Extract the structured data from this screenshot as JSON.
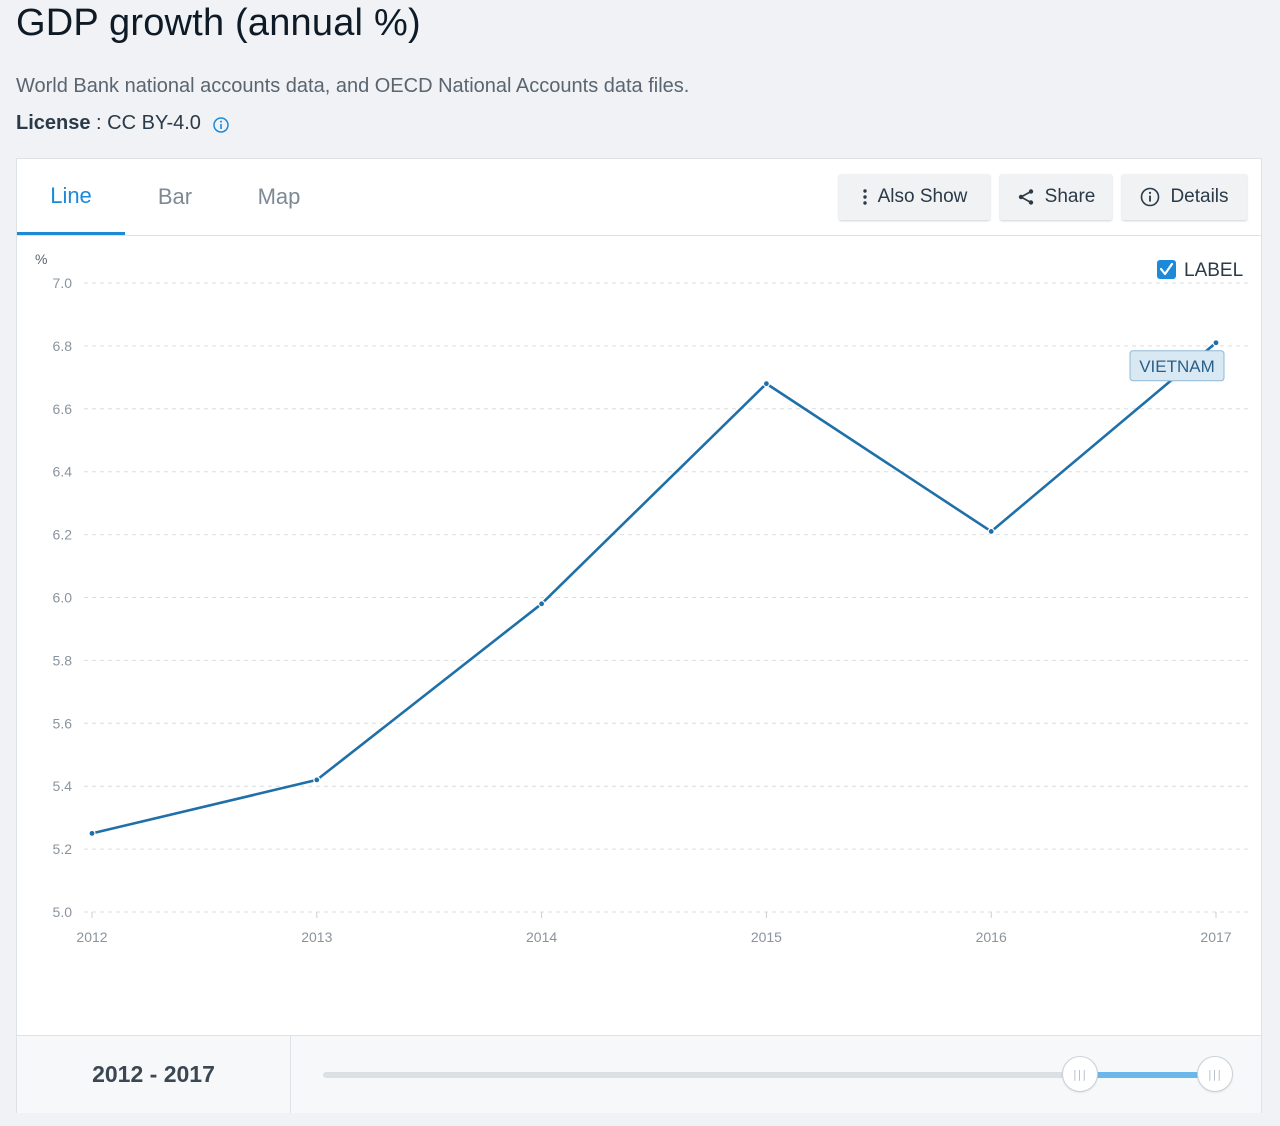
{
  "header": {
    "title": "GDP growth (annual %)",
    "source": "World Bank national accounts data, and OECD National Accounts data files.",
    "license_label": "License",
    "license_sep": " : ",
    "license_value": "CC BY-4.0"
  },
  "tabs": [
    {
      "label": "Line",
      "active": true
    },
    {
      "label": "Bar",
      "active": false
    },
    {
      "label": "Map",
      "active": false
    }
  ],
  "toolbar": {
    "also_show": "Also Show",
    "share": "Share",
    "details": "Details"
  },
  "label_toggle": {
    "text": "LABEL",
    "checked": true
  },
  "colors": {
    "accent": "#1c8ad9",
    "series": "#1f6fa8",
    "label_bg": "#d8e9f4"
  },
  "chart_data": {
    "type": "line",
    "unit_label": "%",
    "x": [
      "2012",
      "2013",
      "2014",
      "2015",
      "2016",
      "2017"
    ],
    "series": [
      {
        "name": "VIETNAM",
        "values": [
          5.25,
          5.42,
          5.98,
          6.68,
          6.21,
          6.81
        ]
      }
    ],
    "ylim": [
      5.0,
      7.0
    ],
    "yticks": [
      "5.0",
      "5.2",
      "5.4",
      "5.6",
      "5.8",
      "6.0",
      "6.2",
      "6.4",
      "6.6",
      "6.8",
      "7.0"
    ],
    "grid": true
  },
  "range": {
    "start": "2012",
    "sep": " - ",
    "end": "2017"
  }
}
